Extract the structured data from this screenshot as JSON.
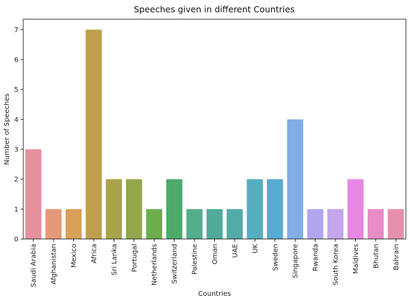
{
  "chart_data": {
    "type": "bar",
    "title": "Speeches given in different Countries",
    "xlabel": "Countries",
    "ylabel": "Number of Speeches",
    "ylim": [
      0,
      7.35
    ],
    "yticks": [
      0,
      1,
      2,
      3,
      4,
      5,
      6,
      7
    ],
    "grid": false,
    "categories": [
      "Saudi Arabia",
      "Afghanistan",
      "Mexico",
      "Africa",
      "Sri Lanka",
      "Portugal",
      "Netherlands",
      "Switzerland",
      "Palestine",
      "Oman",
      "UAE",
      "UK",
      "Sweden",
      "Singapore",
      "Rwanda",
      "South Korea",
      "Maldives",
      "Bhutan",
      "Bahrain"
    ],
    "values": [
      3,
      1,
      1,
      7,
      2,
      2,
      1,
      2,
      1,
      1,
      1,
      2,
      2,
      4,
      1,
      1,
      2,
      1,
      1
    ],
    "colors": [
      "#e6919e",
      "#e59a77",
      "#d9a057",
      "#c0a04f",
      "#a9a449",
      "#93a64b",
      "#6cae4d",
      "#4daa6a",
      "#52ae8d",
      "#51ab9a",
      "#53aba7",
      "#55aebf",
      "#57aad2",
      "#83ade6",
      "#b0a6ee",
      "#c5a5ec",
      "#e687e3",
      "#e88cc5",
      "#e591ae"
    ]
  }
}
